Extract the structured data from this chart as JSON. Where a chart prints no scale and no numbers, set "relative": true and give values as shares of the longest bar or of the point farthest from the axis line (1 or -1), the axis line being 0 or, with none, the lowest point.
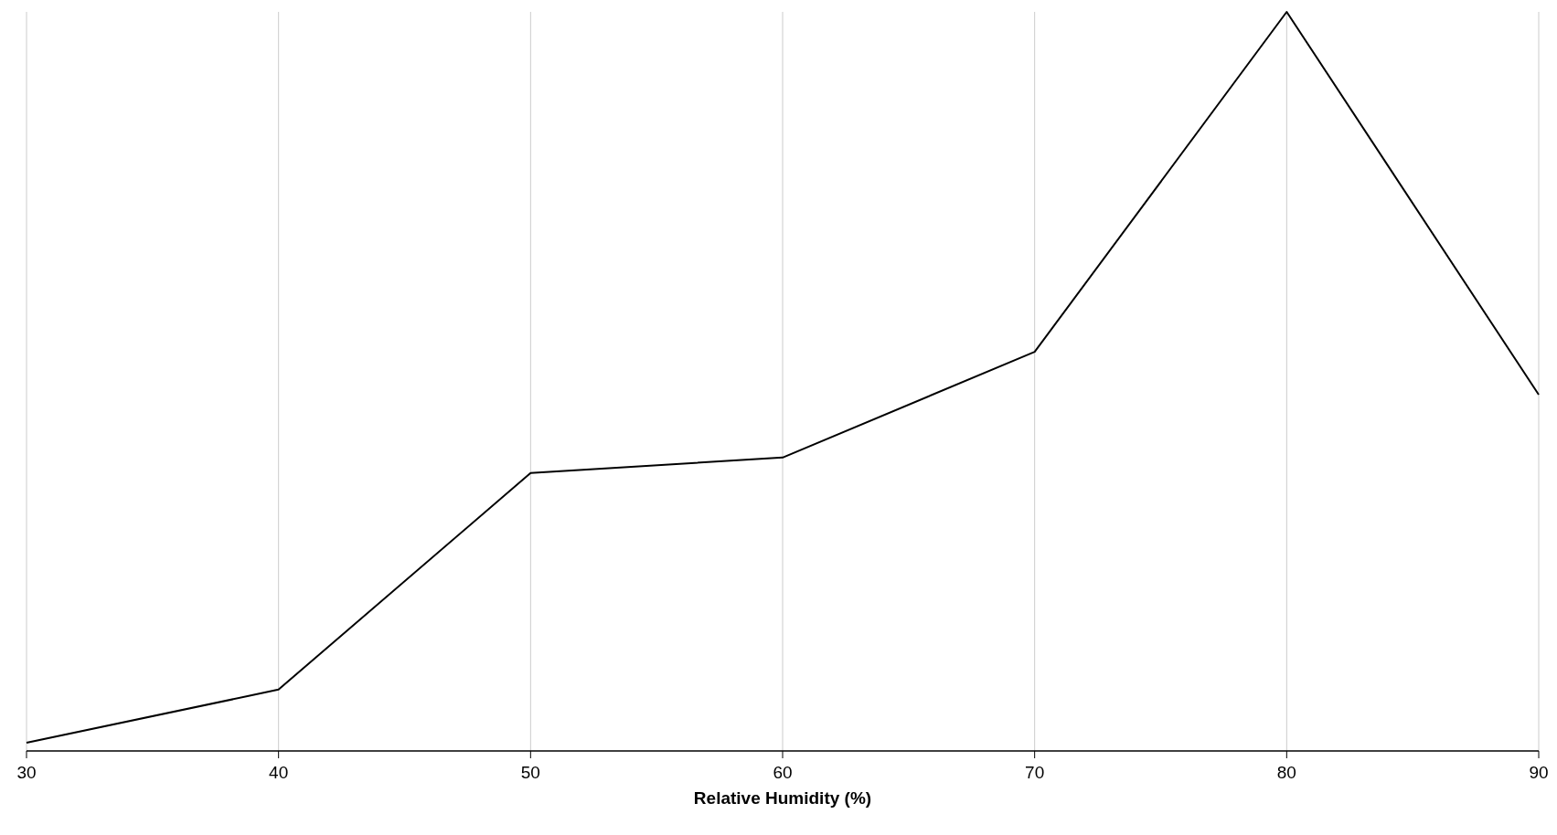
{
  "chart_data": {
    "type": "line",
    "relative": true,
    "xlabel": "Relative Humidity (%)",
    "x": [
      30,
      40,
      50,
      60,
      70,
      80,
      90
    ],
    "series": [
      {
        "color": "#000000",
        "values": [
          0.011,
          0.083,
          0.376,
          0.397,
          0.54,
          1,
          0.482
        ]
      }
    ],
    "xlim": [
      30,
      90
    ],
    "xticks": [
      30,
      40,
      50,
      60,
      70,
      80,
      90
    ],
    "grid": "x",
    "marker": "none",
    "line_style": "solid"
  }
}
